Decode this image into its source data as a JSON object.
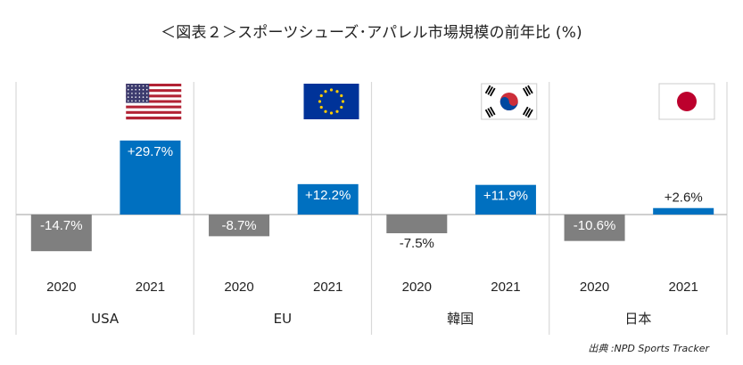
{
  "title": "＜図表２＞スポーツシューズ･アパレル市場規模の前年比 (%)",
  "source": "出典 :NPD Sports Tracker",
  "colors": {
    "year2020": "#7f7f7f",
    "year2021": "#0070c0",
    "axis": "#bfbfbf",
    "divider": "#d9d9d9"
  },
  "chart_data": {
    "type": "bar",
    "title": "＜図表２＞スポーツシューズ･アパレル市場規模の前年比 (%)",
    "unit": "%",
    "years": [
      "2020",
      "2021"
    ],
    "groups": [
      {
        "name": "USA",
        "flag": "usa-flag",
        "values": [
          -14.7,
          29.7
        ],
        "labels": [
          "-14.7%",
          "+29.7%"
        ]
      },
      {
        "name": "EU",
        "flag": "eu-flag",
        "values": [
          -8.7,
          12.2
        ],
        "labels": [
          "-8.7%",
          "+12.2%"
        ]
      },
      {
        "name": "韓国",
        "flag": "korea-flag",
        "values": [
          -7.5,
          11.9
        ],
        "labels": [
          "-7.5%",
          "+11.9%"
        ]
      },
      {
        "name": "日本",
        "flag": "japan-flag",
        "values": [
          -10.6,
          2.6
        ],
        "labels": [
          "-10.6%",
          "+2.6%"
        ]
      }
    ],
    "grid": false,
    "legend": "none"
  }
}
